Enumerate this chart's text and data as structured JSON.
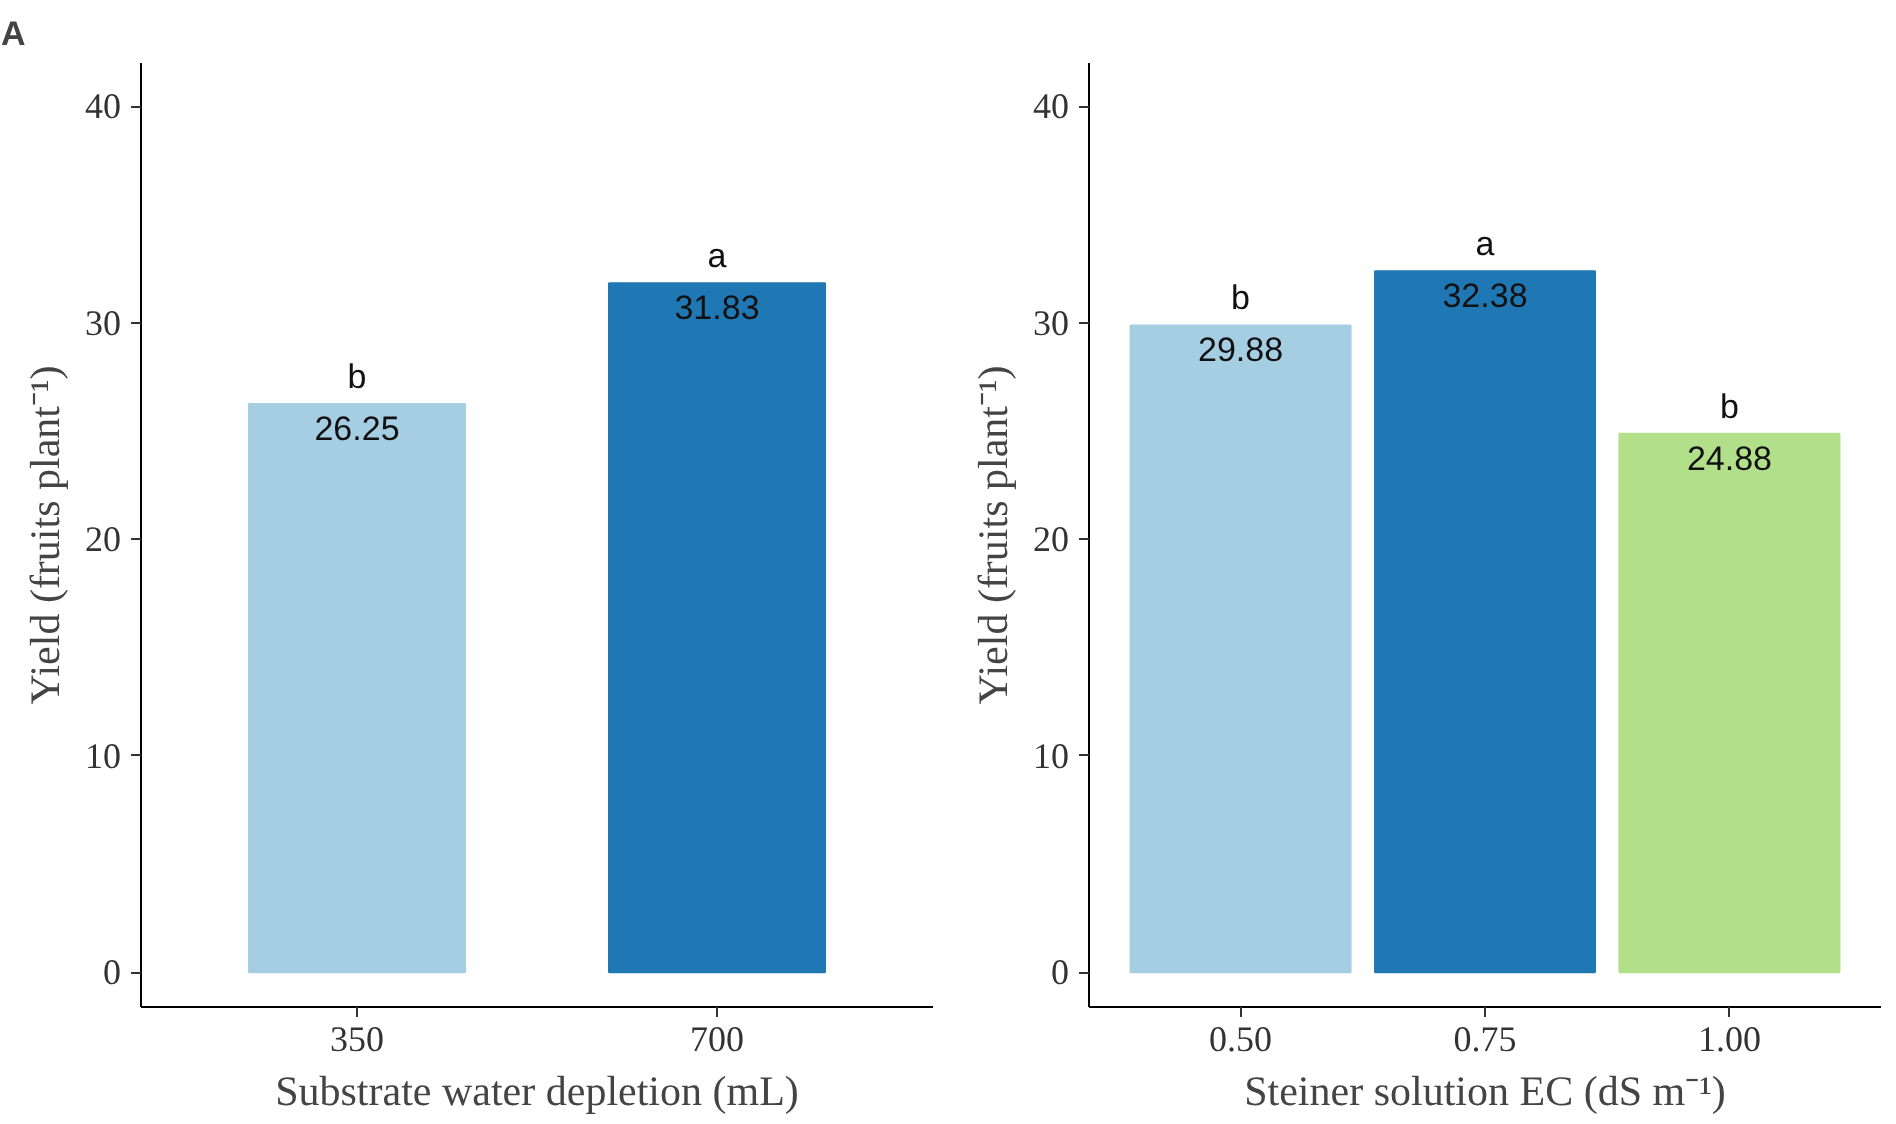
{
  "chart_data": [
    {
      "type": "bar",
      "title": "A",
      "categories": [
        "350",
        "700"
      ],
      "values": [
        26.25,
        31.83
      ],
      "colors": [
        "#a6cee3",
        "#1f78b4"
      ],
      "xlabel": "Substrate water depletion (mL)",
      "ylabel": "Yield (fruits plant⁻¹)",
      "ylim": [
        -1.6,
        42
      ],
      "yticks": [
        0,
        10,
        20,
        30,
        40
      ],
      "data_labels": true,
      "grid": false,
      "annotations": [
        "b",
        "a"
      ]
    },
    {
      "type": "bar",
      "categories": [
        "0.50",
        "0.75",
        "1.00"
      ],
      "values": [
        29.88,
        32.38,
        24.88
      ],
      "colors": [
        "#a6cee3",
        "#1f78b4",
        "#b2df8a"
      ],
      "xlabel": "Steiner solution EC (dS m⁻¹)",
      "ylabel": "Yield (fruits plant⁻¹)",
      "ylim": [
        -1.6,
        42
      ],
      "yticks": [
        0,
        10,
        20,
        30,
        40
      ],
      "data_labels": true,
      "grid": false,
      "annotations": [
        "b",
        "a",
        "b"
      ]
    }
  ]
}
